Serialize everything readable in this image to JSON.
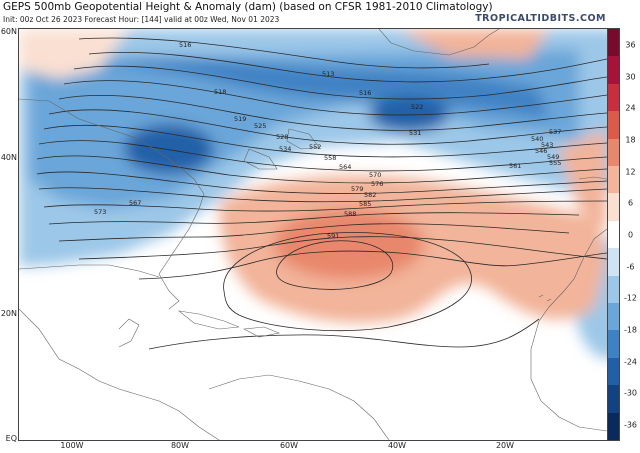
{
  "header": {
    "title": "GEPS 500mb Geopotential Height & Anomaly (dam) (based on CFSR 1981-2010 Climatology)",
    "subtitle": "Init: 00z Oct 26 2023   Forecast Hour: [144]   valid at 00z Wed, Nov 01 2023",
    "brand": "TROPICALTIDBITS.COM"
  },
  "map": {
    "lat_labels": [
      "60N",
      "40N",
      "20N",
      "EQ"
    ],
    "lon_labels": [
      "100W",
      "80W",
      "60W",
      "40W",
      "20W"
    ],
    "contour_labels": [
      "516",
      "518",
      "513",
      "516",
      "519",
      "522",
      "525",
      "528",
      "531",
      "534",
      "537",
      "540",
      "543",
      "546",
      "549",
      "552",
      "555",
      "558",
      "561",
      "564",
      "567",
      "570",
      "573",
      "576",
      "579",
      "582",
      "585",
      "588",
      "591"
    ],
    "line_color": "#2a2a2a",
    "border_color": "#666666"
  },
  "colorbar": {
    "ticks": [
      "36",
      "30",
      "24",
      "18",
      "12",
      "6",
      "0",
      "-6",
      "-12",
      "-18",
      "-24",
      "-30",
      "-36"
    ],
    "colors_top_to_bottom": [
      "#7a0a2a",
      "#a8123a",
      "#c92e3f",
      "#dc5a4a",
      "#e8876c",
      "#f2b49a",
      "#fae0d2",
      "#ffffff",
      "#cfe3f3",
      "#9cc7e8",
      "#6aa6d9",
      "#3f82c4",
      "#2160a8",
      "#134283",
      "#0a2a5e"
    ]
  }
}
